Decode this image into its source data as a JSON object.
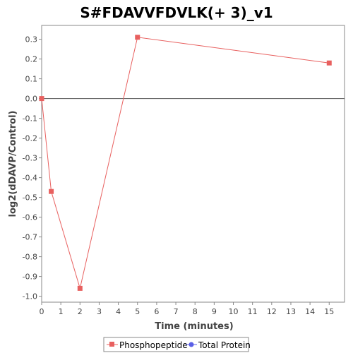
{
  "chart_data": {
    "type": "line",
    "title": "S#FDAVVFDVLK(+ 3)_v1",
    "xlabel": "Time (minutes)",
    "ylabel": "log2(dDAVP/Control)",
    "xlim": [
      0,
      15.8
    ],
    "ylim": [
      -1.03,
      0.37
    ],
    "xticks": [
      0,
      1,
      2,
      3,
      4,
      5,
      6,
      7,
      8,
      9,
      10,
      11,
      12,
      13,
      14,
      15
    ],
    "yticks": [
      -1.0,
      -0.9,
      -0.8,
      -0.7,
      -0.6,
      -0.5,
      -0.4,
      -0.3,
      -0.2,
      -0.1,
      0.0,
      0.1,
      0.2,
      0.3
    ],
    "zero_line": true,
    "grid": false,
    "legend_position": "bottom",
    "series": [
      {
        "name": "Phosphopeptide",
        "color": "#e8605f",
        "marker": "square",
        "x": [
          0,
          0.5,
          2,
          5,
          15
        ],
        "y": [
          0.0,
          -0.47,
          -0.96,
          0.31,
          0.18
        ]
      },
      {
        "name": "Total Protein",
        "color": "#5a5fe6",
        "marker": "circle",
        "x": [],
        "y": []
      }
    ]
  }
}
